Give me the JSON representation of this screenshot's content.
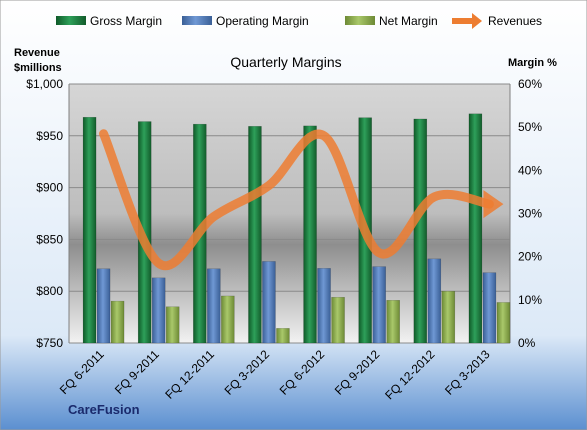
{
  "chart_data": {
    "type": "bar",
    "title": "Quarterly Margins",
    "brand": "CareFusion",
    "left_axis_label_line1": "Revenue",
    "left_axis_label_line2": "$millions",
    "right_axis_label": "Margin %",
    "categories": [
      "FQ 6-2011",
      "FQ 9-2011",
      "FQ 12-2011",
      "FQ 3-2012",
      "FQ 6-2012",
      "FQ 9-2012",
      "FQ 12-2012",
      "FQ 3-2013"
    ],
    "left_axis": {
      "min": 750,
      "max": 1000,
      "ticks": [
        "$750",
        "$800",
        "$850",
        "$900",
        "$950",
        "$1,000"
      ],
      "tick_values": [
        750,
        800,
        850,
        900,
        950,
        1000
      ]
    },
    "right_axis": {
      "min": 0,
      "max": 60,
      "ticks": [
        "0%",
        "10%",
        "20%",
        "30%",
        "40%",
        "50%",
        "60%"
      ],
      "tick_values": [
        0,
        10,
        20,
        30,
        40,
        50,
        60
      ]
    },
    "series": [
      {
        "name": "Gross Margin",
        "axis": "right",
        "kind": "bar",
        "color": "#1e7a3c",
        "values": [
          52.3,
          51.3,
          50.7,
          50.2,
          50.3,
          52.2,
          51.9,
          53.1
        ]
      },
      {
        "name": "Operating Margin",
        "axis": "right",
        "kind": "bar",
        "color": "#4f7fc3",
        "values": [
          17.2,
          15.1,
          17.2,
          18.9,
          17.3,
          17.7,
          19.5,
          16.3
        ]
      },
      {
        "name": "Net Margin",
        "axis": "right",
        "kind": "bar",
        "color": "#8db04e",
        "values": [
          9.7,
          8.4,
          10.9,
          3.4,
          10.6,
          9.9,
          12.0,
          9.4
        ]
      },
      {
        "name": "Revenues",
        "axis": "left",
        "kind": "line",
        "color": "#ed7d31",
        "values": [
          952,
          827,
          872,
          902,
          950,
          837,
          891,
          884
        ]
      }
    ],
    "legend_position": "top",
    "grid": true
  }
}
